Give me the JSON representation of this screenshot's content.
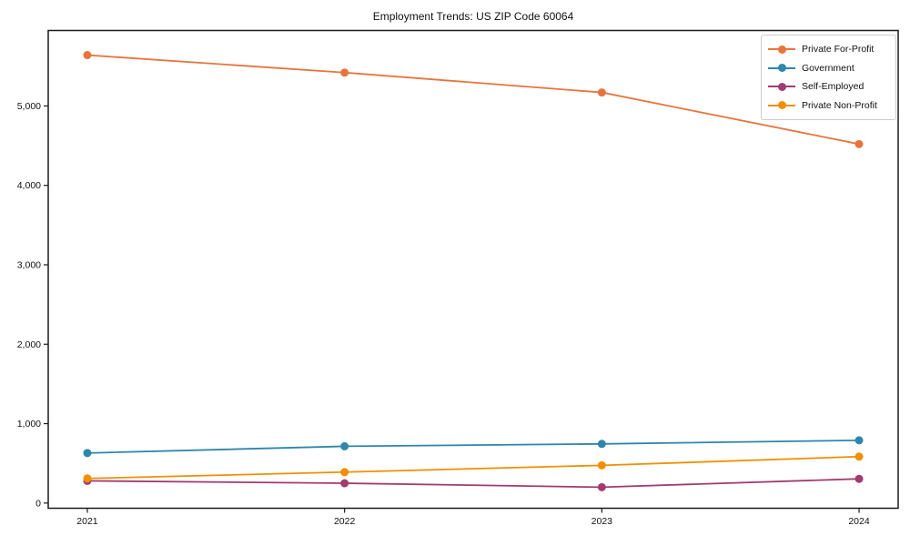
{
  "figure": {
    "title": "Employment Trends: US ZIP Code 60064"
  },
  "chart_data": {
    "type": "line",
    "title": "Employment Trends: US ZIP Code 60064",
    "categories": [
      "2021",
      "2022",
      "2023",
      "2024"
    ],
    "series": [
      {
        "name": "Private For-Profit",
        "color": "#E8743B",
        "values": [
          5640,
          5420,
          5170,
          4520
        ]
      },
      {
        "name": "Government",
        "color": "#2E86AB",
        "values": [
          630,
          715,
          745,
          790
        ]
      },
      {
        "name": "Self-Employed",
        "color": "#A23B72",
        "values": [
          280,
          250,
          200,
          305
        ]
      },
      {
        "name": "Private Non-Profit",
        "color": "#F18F01",
        "values": [
          310,
          390,
          475,
          585
        ]
      }
    ],
    "xlabel": "",
    "ylabel": "",
    "ylim": [
      -65,
      5950
    ],
    "yticks": [
      0,
      1000,
      2000,
      3000,
      4000,
      5000
    ],
    "ytick_labels": [
      "0",
      "1,000",
      "2,000",
      "3,000",
      "4,000",
      "5,000"
    ],
    "grid": false,
    "legend_position": "upper right",
    "marker": "circle"
  },
  "style": {
    "background": "#ffffff",
    "spine_color": "#1a1a1a",
    "text_color": "#111111",
    "legend_border_color": "#cccccc"
  }
}
